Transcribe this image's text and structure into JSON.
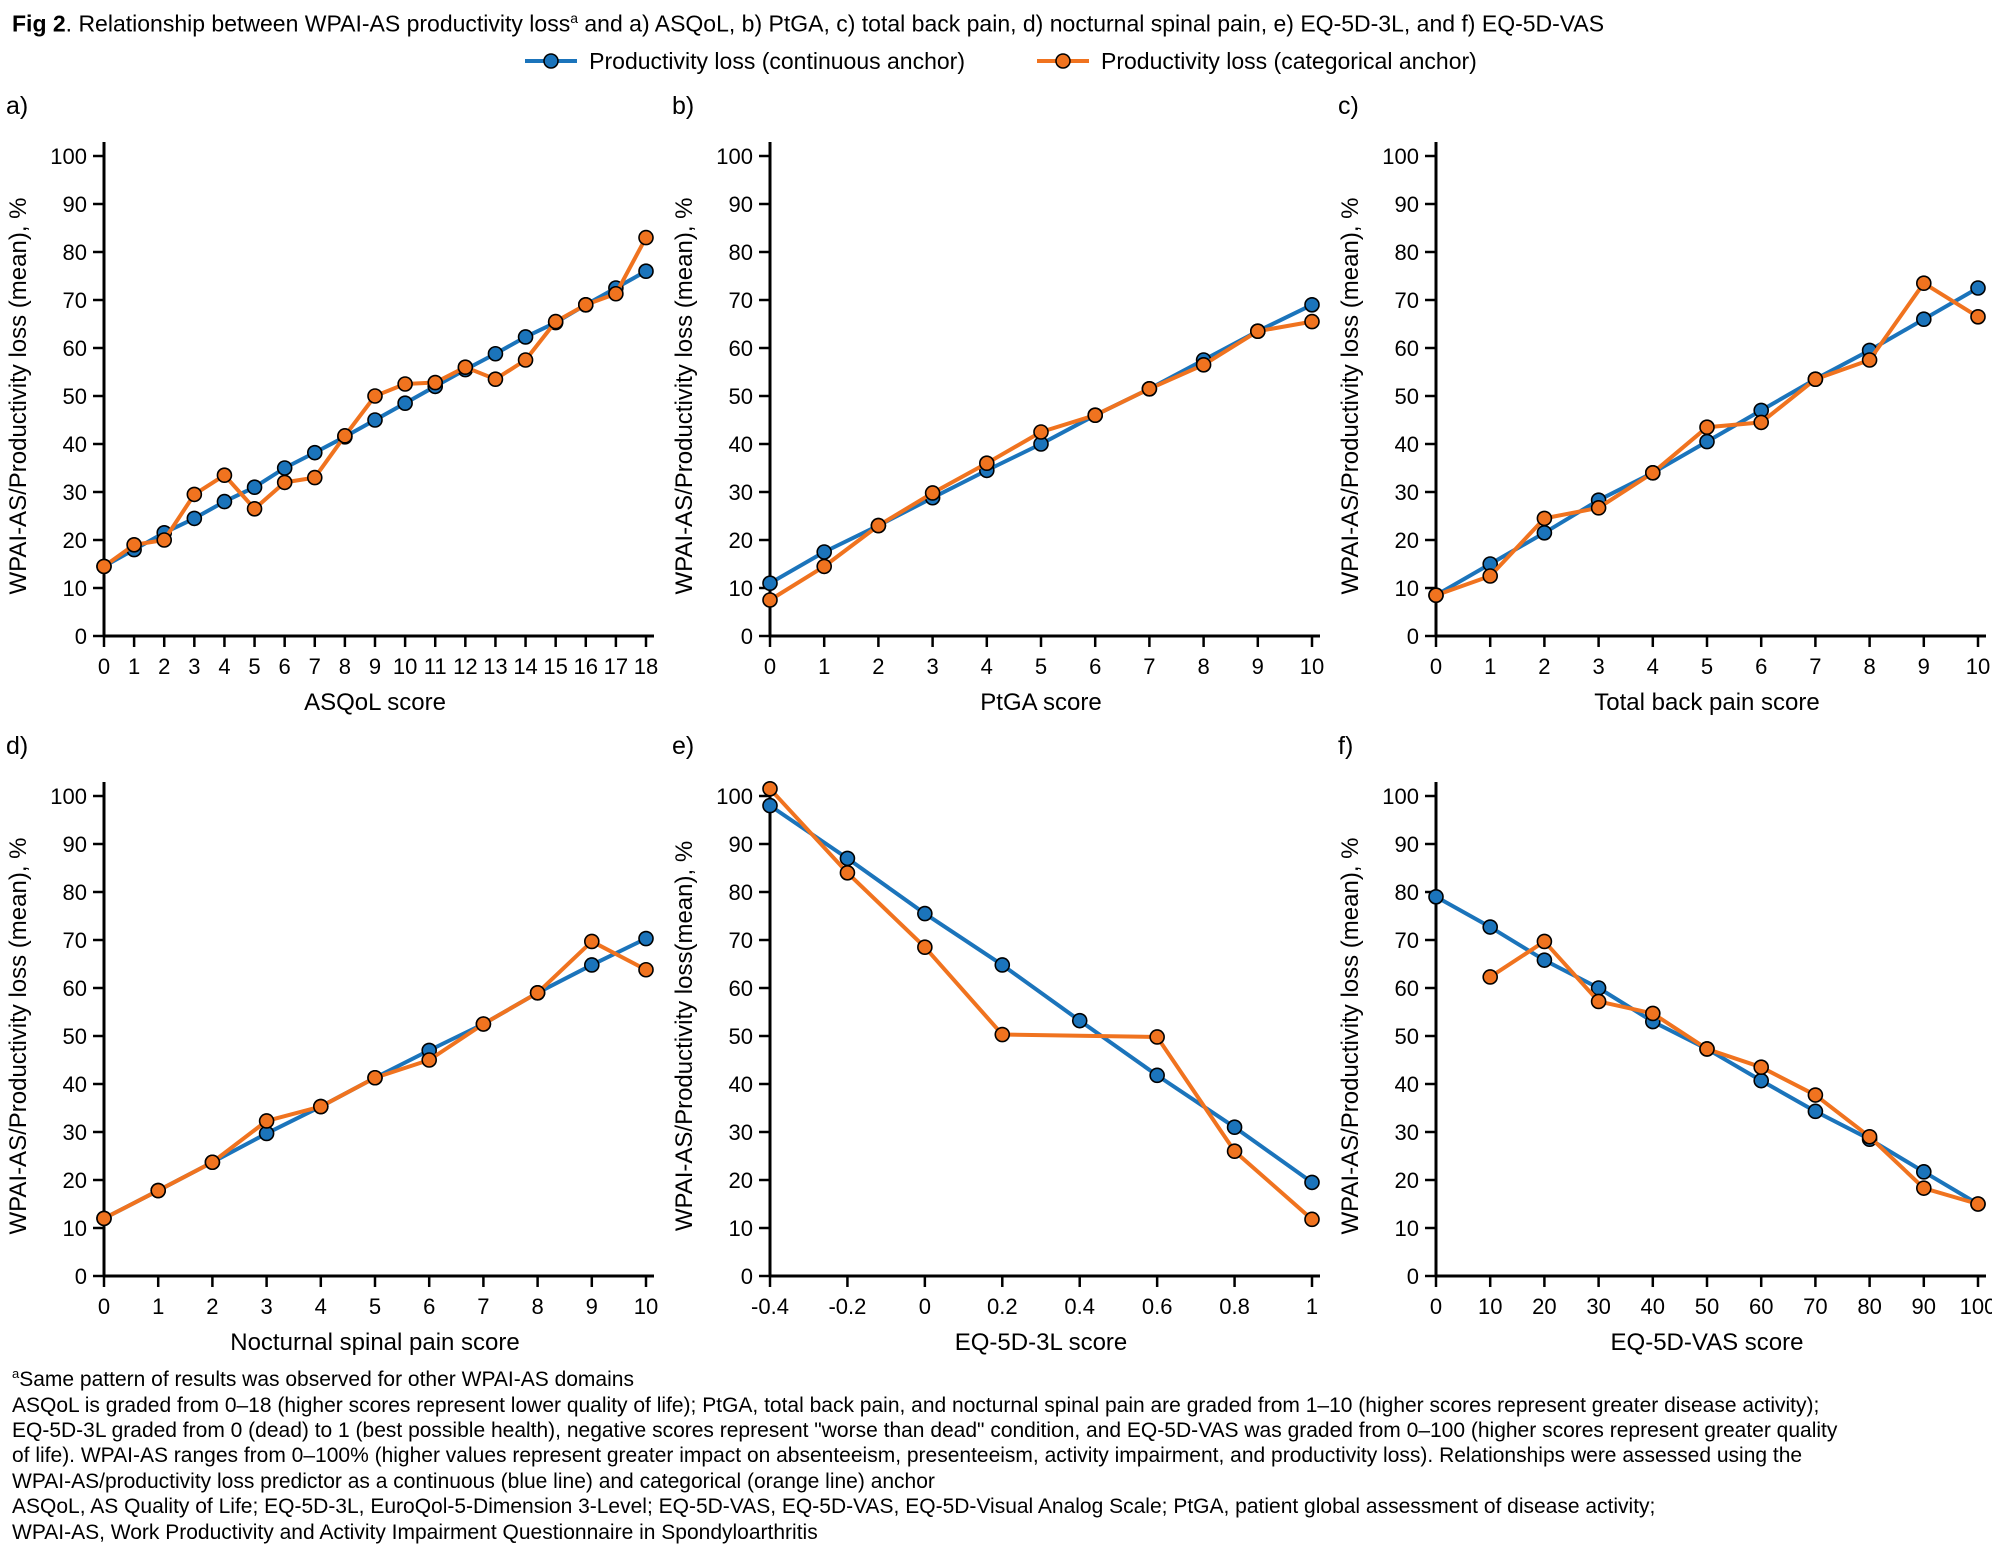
{
  "header": {
    "fig_label": "Fig 2",
    "title_mid": ". Relationship between WPAI-AS productivity loss",
    "superscript": "a",
    "title_rest": " and a) ASQoL, b) PtGA, c) total back pain, d) nocturnal spinal pain, e) EQ-5D-3L, and f) EQ-5D-VAS"
  },
  "legend": {
    "continuous": "Productivity loss (continuous anchor)",
    "categorical": "Productivity loss (categorical anchor)"
  },
  "colors": {
    "continuous": "#1b74bb",
    "categorical": "#f0731f",
    "marker_edge": "#000000",
    "axis": "#000000"
  },
  "chart_data": [
    {
      "type": "line",
      "panel": "a)",
      "xlabel": "ASQoL score",
      "ylabel": "WPAI-AS/Productivity loss (mean), %",
      "xlim": [
        0,
        18
      ],
      "ylim": [
        0,
        100
      ],
      "xticks": [
        0,
        1,
        2,
        3,
        4,
        5,
        6,
        7,
        8,
        9,
        10,
        11,
        12,
        13,
        14,
        15,
        16,
        17,
        18
      ],
      "yticks": [
        0,
        10,
        20,
        30,
        40,
        50,
        60,
        70,
        80,
        90,
        100
      ],
      "series": [
        {
          "name": "Productivity loss (continuous anchor)",
          "anchor": "continuous",
          "x": [
            0,
            1,
            2,
            3,
            4,
            5,
            6,
            7,
            8,
            9,
            10,
            11,
            12,
            13,
            14,
            15,
            16,
            17,
            18
          ],
          "y": [
            14.5,
            18,
            21.5,
            24.5,
            28,
            31,
            35,
            38.2,
            41.5,
            45,
            48.5,
            52,
            55.5,
            58.8,
            62.3,
            65.3,
            69,
            72.5,
            76
          ]
        },
        {
          "name": "Productivity loss (categorical anchor)",
          "anchor": "categorical",
          "x": [
            0,
            1,
            2,
            3,
            4,
            5,
            6,
            7,
            8,
            9,
            10,
            11,
            12,
            13,
            14,
            15,
            16,
            17,
            18
          ],
          "y": [
            14.5,
            19,
            20,
            29.5,
            33.5,
            26.5,
            32,
            33,
            41.7,
            50,
            52.5,
            52.8,
            56,
            53.5,
            57.5,
            65.5,
            69,
            71.3,
            83
          ]
        }
      ]
    },
    {
      "type": "line",
      "panel": "b)",
      "xlabel": "PtGA score",
      "ylabel": "WPAI-AS/Productivity loss (mean), %",
      "xlim": [
        0,
        10
      ],
      "ylim": [
        0,
        100
      ],
      "xticks": [
        0,
        1,
        2,
        3,
        4,
        5,
        6,
        7,
        8,
        9,
        10
      ],
      "yticks": [
        0,
        10,
        20,
        30,
        40,
        50,
        60,
        70,
        80,
        90,
        100
      ],
      "series": [
        {
          "name": "Productivity loss (continuous anchor)",
          "anchor": "continuous",
          "x": [
            0,
            1,
            2,
            3,
            4,
            5,
            6,
            7,
            8,
            9,
            10
          ],
          "y": [
            11,
            17.5,
            23,
            28.8,
            34.5,
            40,
            46,
            51.5,
            57.5,
            63.5,
            69
          ]
        },
        {
          "name": "Productivity loss (categorical anchor)",
          "anchor": "categorical",
          "x": [
            0,
            1,
            2,
            3,
            4,
            5,
            6,
            7,
            8,
            9,
            10
          ],
          "y": [
            7.5,
            14.5,
            23,
            29.8,
            36,
            42.5,
            46,
            51.5,
            56.5,
            63.5,
            65.5
          ]
        }
      ]
    },
    {
      "type": "line",
      "panel": "c)",
      "xlabel": "Total back pain score",
      "ylabel": "WPAI-AS/Productivity loss (mean), %",
      "xlim": [
        0,
        10
      ],
      "ylim": [
        0,
        100
      ],
      "xticks": [
        0,
        1,
        2,
        3,
        4,
        5,
        6,
        7,
        8,
        9,
        10
      ],
      "yticks": [
        0,
        10,
        20,
        30,
        40,
        50,
        60,
        70,
        80,
        90,
        100
      ],
      "series": [
        {
          "name": "Productivity loss (continuous anchor)",
          "anchor": "continuous",
          "x": [
            0,
            1,
            2,
            3,
            4,
            5,
            6,
            7,
            8,
            9,
            10
          ],
          "y": [
            8.5,
            15,
            21.5,
            28.3,
            34,
            40.5,
            47,
            53.5,
            59.5,
            66,
            72.5
          ]
        },
        {
          "name": "Productivity loss (categorical anchor)",
          "anchor": "categorical",
          "x": [
            0,
            1,
            2,
            3,
            4,
            5,
            6,
            7,
            8,
            9,
            10
          ],
          "y": [
            8.5,
            12.5,
            24.5,
            26.7,
            34,
            43.5,
            44.5,
            53.5,
            57.5,
            73.5,
            66.5
          ]
        }
      ]
    },
    {
      "type": "line",
      "panel": "d)",
      "xlabel": "Nocturnal spinal pain score",
      "ylabel": "WPAI-AS/Productivity loss (mean), %",
      "xlim": [
        0,
        10
      ],
      "ylim": [
        0,
        100
      ],
      "xticks": [
        0,
        1,
        2,
        3,
        4,
        5,
        6,
        7,
        8,
        9,
        10
      ],
      "yticks": [
        0,
        10,
        20,
        30,
        40,
        50,
        60,
        70,
        80,
        90,
        100
      ],
      "series": [
        {
          "name": "Productivity loss (continuous anchor)",
          "anchor": "continuous",
          "x": [
            0,
            1,
            2,
            3,
            4,
            5,
            6,
            7,
            8,
            9,
            10
          ],
          "y": [
            12,
            17.8,
            23.7,
            29.7,
            35.3,
            41.3,
            47,
            52.5,
            59,
            64.8,
            70.3
          ]
        },
        {
          "name": "Productivity loss (categorical anchor)",
          "anchor": "categorical",
          "x": [
            0,
            1,
            2,
            3,
            4,
            5,
            6,
            7,
            8,
            9,
            10
          ],
          "y": [
            12,
            17.8,
            23.7,
            32.3,
            35.3,
            41.3,
            45,
            52.5,
            59,
            69.7,
            63.8
          ]
        }
      ]
    },
    {
      "type": "line",
      "panel": "e)",
      "xlabel": "EQ-5D-3L score",
      "ylabel": "WPAI-AS/Productivity loss(mean), %",
      "xlim": [
        -0.4,
        1
      ],
      "ylim": [
        0,
        100
      ],
      "xticks": [
        -0.4,
        -0.2,
        0,
        0.2,
        0.4,
        0.6,
        0.8,
        1
      ],
      "yticks": [
        0,
        10,
        20,
        30,
        40,
        50,
        60,
        70,
        80,
        90,
        100
      ],
      "series": [
        {
          "name": "Productivity loss (continuous anchor)",
          "anchor": "continuous",
          "x": [
            -0.4,
            -0.2,
            0,
            0.2,
            0.4,
            0.6,
            0.8,
            1
          ],
          "y": [
            98,
            87,
            75.5,
            64.8,
            53.2,
            41.8,
            31,
            19.5
          ]
        },
        {
          "name": "Productivity loss (categorical anchor)",
          "anchor": "categorical",
          "x": [
            -0.4,
            -0.2,
            0,
            0.2,
            0.6,
            0.8,
            1
          ],
          "y": [
            101.5,
            84,
            68.5,
            50.3,
            49.8,
            26,
            11.8
          ]
        }
      ]
    },
    {
      "type": "line",
      "panel": "f)",
      "xlabel": "EQ-5D-VAS score",
      "ylabel": "WPAI-AS/Productivity loss (mean), %",
      "xlim": [
        0,
        100
      ],
      "ylim": [
        0,
        100
      ],
      "xticks": [
        0,
        10,
        20,
        30,
        40,
        50,
        60,
        70,
        80,
        90,
        100
      ],
      "yticks": [
        0,
        10,
        20,
        30,
        40,
        50,
        60,
        70,
        80,
        90,
        100
      ],
      "series": [
        {
          "name": "Productivity loss (continuous anchor)",
          "anchor": "continuous",
          "x": [
            0,
            10,
            20,
            30,
            40,
            50,
            60,
            70,
            80,
            90,
            100
          ],
          "y": [
            79,
            72.7,
            65.8,
            60,
            53,
            47.3,
            40.7,
            34.3,
            28.5,
            21.7,
            15
          ]
        },
        {
          "name": "Productivity loss (categorical anchor)",
          "anchor": "categorical",
          "x": [
            10,
            20,
            30,
            40,
            50,
            60,
            70,
            80,
            90,
            100
          ],
          "y": [
            62.3,
            69.7,
            57.2,
            54.7,
            47.3,
            43.5,
            37.7,
            29,
            18.3,
            15
          ]
        }
      ]
    }
  ],
  "footnotes": {
    "sup": "a",
    "lines": [
      "Same pattern of results was observed for other WPAI-AS domains",
      "ASQoL is graded from 0–18 (higher scores represent lower quality of life); PtGA, total back pain, and nocturnal spinal pain are graded from 1–10 (higher scores represent greater disease activity);",
      "EQ-5D-3L graded from 0 (dead) to 1 (best possible health), negative scores represent \"worse than dead\" condition, and EQ-5D-VAS was graded from 0–100 (higher scores represent greater quality",
      "of life). WPAI-AS ranges from 0–100% (higher values represent greater impact on absenteeism, presenteeism, activity impairment, and productivity loss). Relationships were assessed using the",
      "WPAI-AS/productivity loss predictor as a continuous (blue line) and categorical (orange line) anchor",
      "ASQoL, AS Quality of Life; EQ-5D-3L, EuroQol-5-Dimension 3-Level; EQ-5D-VAS, EQ-5D-VAS, EQ-5D-Visual Analog Scale; PtGA, patient global assessment of disease activity;",
      "WPAI-AS, Work Productivity and Activity Impairment Questionnaire in Spondyloarthritis"
    ]
  }
}
